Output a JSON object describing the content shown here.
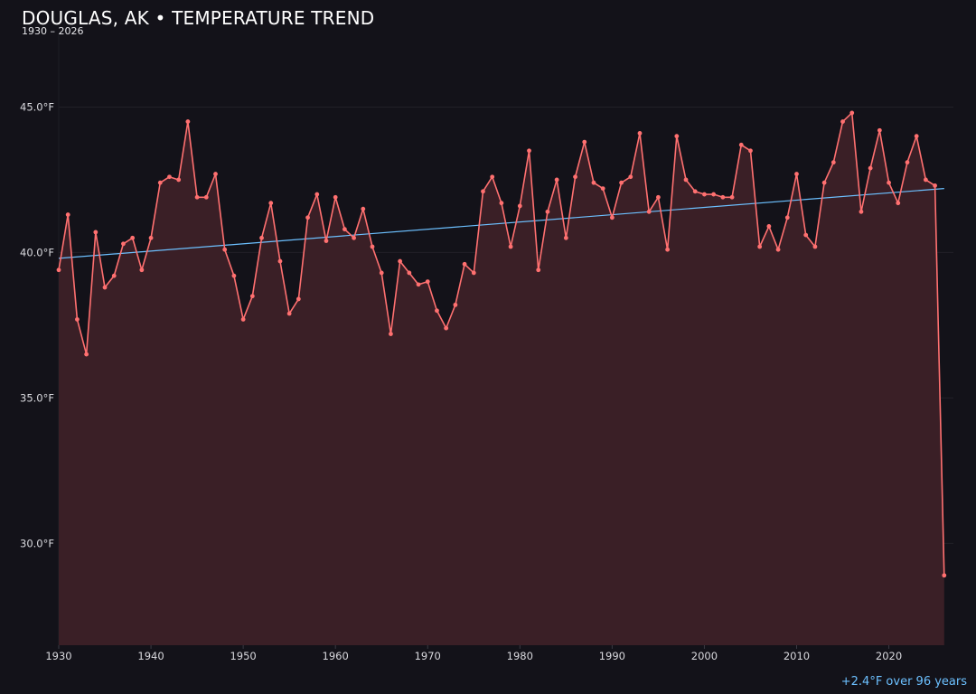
{
  "title": "DOUGLAS, AK • TEMPERATURE TREND",
  "subtitle": "1930 – 2026",
  "footnote": "+2.4°F over 96 years",
  "colors": {
    "background": "#131219",
    "line": "#ff7070",
    "area": "#3a1f26",
    "trend": "#6cc0ff",
    "grid": "#222028"
  },
  "chart_data": {
    "type": "line",
    "title": "DOUGLAS, AK • TEMPERATURE TREND",
    "subtitle": "1930 – 2026",
    "xlabel": "",
    "ylabel": "",
    "xlim": [
      1930,
      2027
    ],
    "ylim": [
      26.5,
      47.5
    ],
    "grid": true,
    "x_ticks": [
      1930,
      1940,
      1950,
      1960,
      1970,
      1980,
      1990,
      2000,
      2010,
      2020
    ],
    "x_tick_labels": [
      "1930",
      "1940",
      "1950",
      "1960",
      "1970",
      "1980",
      "1990",
      "2000",
      "2010",
      "2020"
    ],
    "y_ticks": [
      30,
      35,
      40,
      45
    ],
    "y_tick_labels": [
      "30.0°F",
      "35.0°F",
      "40.0°F",
      "45.0°F"
    ],
    "x": [
      1930,
      1931,
      1932,
      1933,
      1934,
      1935,
      1936,
      1937,
      1938,
      1939,
      1940,
      1941,
      1942,
      1943,
      1944,
      1945,
      1946,
      1947,
      1948,
      1949,
      1950,
      1951,
      1952,
      1953,
      1954,
      1955,
      1956,
      1957,
      1958,
      1959,
      1960,
      1961,
      1962,
      1963,
      1964,
      1965,
      1966,
      1967,
      1968,
      1969,
      1970,
      1971,
      1972,
      1973,
      1974,
      1975,
      1976,
      1977,
      1978,
      1979,
      1980,
      1981,
      1982,
      1983,
      1984,
      1985,
      1986,
      1987,
      1988,
      1989,
      1990,
      1991,
      1992,
      1993,
      1994,
      1995,
      1996,
      1997,
      1998,
      1999,
      2000,
      2001,
      2002,
      2003,
      2004,
      2005,
      2006,
      2007,
      2008,
      2009,
      2010,
      2011,
      2012,
      2013,
      2014,
      2015,
      2016,
      2017,
      2018,
      2019,
      2020,
      2021,
      2022,
      2023,
      2024,
      2025,
      2026
    ],
    "series": [
      {
        "values": [
          39.4,
          41.3,
          37.7,
          36.5,
          40.7,
          38.8,
          39.2,
          40.3,
          40.5,
          39.4,
          40.5,
          42.4,
          42.6,
          42.5,
          44.5,
          41.9,
          41.9,
          42.7,
          40.1,
          39.2,
          37.7,
          38.5,
          40.5,
          41.7,
          39.7,
          37.9,
          38.4,
          41.2,
          42.0,
          40.4,
          41.9,
          40.8,
          40.5,
          41.5,
          40.2,
          39.3,
          37.2,
          39.7,
          39.3,
          38.9,
          39.0,
          38.0,
          37.4,
          38.2,
          39.6,
          39.3,
          42.1,
          42.6,
          41.7,
          40.2,
          41.6,
          43.5,
          39.4,
          41.4,
          42.5,
          40.5,
          42.6,
          43.8,
          42.4,
          42.2,
          41.2,
          42.4,
          42.6,
          44.1,
          41.4,
          41.9,
          40.1,
          44.0,
          42.5,
          42.1,
          42.0,
          42.0,
          41.9,
          41.9,
          43.7,
          43.5,
          40.2,
          40.9,
          40.1,
          41.2,
          42.7,
          40.6,
          40.2,
          42.4,
          43.1,
          44.5,
          44.8,
          41.4,
          42.9,
          44.2,
          42.4,
          41.7,
          43.1,
          44.0,
          42.5,
          42.3,
          28.9
        ]
      }
    ],
    "trend": {
      "x": [
        1930,
        2026
      ],
      "y": [
        39.8,
        42.2
      ]
    }
  }
}
